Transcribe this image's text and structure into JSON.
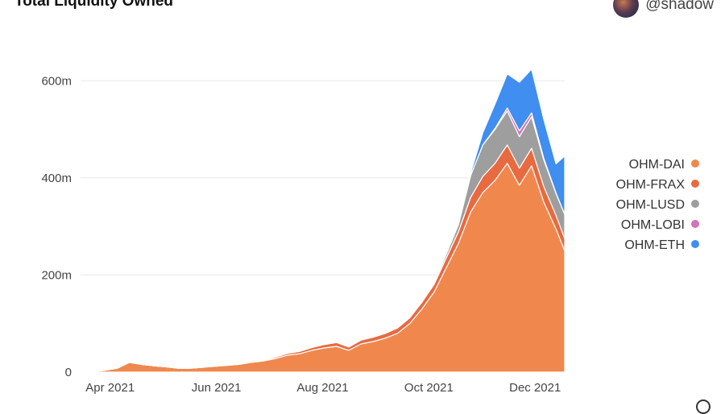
{
  "header": {
    "title": "Total Liquidity Owned",
    "author": "@shadow",
    "avatar": "author-avatar"
  },
  "chart_data": {
    "type": "area",
    "stacked": true,
    "title": "Total Liquidity Owned",
    "xlabel": "",
    "ylabel": "",
    "x": [
      "2021-03-15",
      "2021-03-22",
      "2021-03-29",
      "2021-04-05",
      "2021-04-12",
      "2021-04-19",
      "2021-04-26",
      "2021-05-03",
      "2021-05-10",
      "2021-05-17",
      "2021-05-24",
      "2021-05-31",
      "2021-06-07",
      "2021-06-14",
      "2021-06-21",
      "2021-06-28",
      "2021-07-05",
      "2021-07-12",
      "2021-07-19",
      "2021-07-26",
      "2021-08-02",
      "2021-08-09",
      "2021-08-16",
      "2021-08-23",
      "2021-08-30",
      "2021-09-06",
      "2021-09-13",
      "2021-09-20",
      "2021-09-27",
      "2021-10-04",
      "2021-10-11",
      "2021-10-18",
      "2021-10-25",
      "2021-11-01",
      "2021-11-08",
      "2021-11-15",
      "2021-11-22",
      "2021-11-29",
      "2021-12-06",
      "2021-12-13",
      "2021-12-18"
    ],
    "x_ticks": [
      "Apr 2021",
      "Jun 2021",
      "Aug 2021",
      "Oct 2021",
      "Dec 2021"
    ],
    "x_tick_dates": [
      "2021-04-01",
      "2021-06-01",
      "2021-08-01",
      "2021-10-01",
      "2021-12-01"
    ],
    "y_ticks": [
      "0",
      "200m",
      "400m",
      "600m"
    ],
    "y_tick_values": [
      0,
      200,
      400,
      600
    ],
    "y_unit": "millions",
    "ylim": [
      0,
      700
    ],
    "grid": true,
    "legend_position": "right",
    "series": [
      {
        "name": "OHM-DAI",
        "color": "#F0884E",
        "values": [
          0,
          1,
          4,
          8,
          20,
          16,
          13,
          11,
          8,
          8,
          10,
          12,
          14,
          16,
          20,
          23,
          28,
          35,
          38,
          45,
          50,
          53,
          45,
          58,
          63,
          70,
          80,
          100,
          130,
          165,
          215,
          265,
          330,
          370,
          395,
          430,
          385,
          425,
          350,
          295,
          250
        ]
      },
      {
        "name": "OHM-FRAX",
        "color": "#E86A40",
        "values": [
          0,
          0,
          0,
          0,
          0,
          0,
          0,
          0,
          0,
          0,
          0,
          1,
          1,
          1,
          2,
          2,
          3,
          4,
          5,
          6,
          7,
          8,
          7,
          8,
          9,
          10,
          11,
          12,
          14,
          16,
          20,
          24,
          30,
          33,
          35,
          38,
          35,
          36,
          32,
          28,
          25
        ]
      },
      {
        "name": "OHM-LUSD",
        "color": "#9E9E9E",
        "values": [
          0,
          0,
          0,
          0,
          0,
          0,
          0,
          0,
          0,
          0,
          0,
          0,
          0,
          0,
          0,
          0,
          0,
          0,
          0,
          0,
          0,
          0,
          0,
          0,
          0,
          0,
          0,
          0,
          1,
          3,
          8,
          15,
          45,
          65,
          70,
          70,
          65,
          65,
          55,
          45,
          50
        ]
      },
      {
        "name": "OHM-LOBI",
        "color": "#D473B9",
        "values": [
          0,
          0,
          0,
          0,
          0,
          0,
          0,
          0,
          0,
          0,
          0,
          0,
          0,
          0,
          0,
          0,
          0,
          0,
          0,
          0,
          0,
          0,
          0,
          0,
          0,
          0,
          0,
          0,
          0,
          0,
          0,
          0,
          0,
          0,
          2,
          6,
          12,
          8,
          3,
          1,
          0
        ]
      },
      {
        "name": "OHM-ETH",
        "color": "#3F8EF0",
        "values": [
          0,
          0,
          0,
          0,
          0,
          0,
          0,
          0,
          0,
          0,
          0,
          0,
          0,
          0,
          0,
          0,
          0,
          0,
          0,
          0,
          0,
          0,
          0,
          0,
          0,
          0,
          0,
          0,
          0,
          0,
          0,
          0,
          5,
          25,
          50,
          70,
          100,
          90,
          80,
          60,
          120
        ]
      }
    ]
  }
}
